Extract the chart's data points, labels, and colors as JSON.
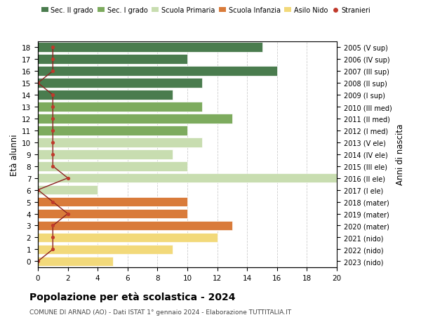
{
  "ages": [
    18,
    17,
    16,
    15,
    14,
    13,
    12,
    11,
    10,
    9,
    8,
    7,
    6,
    5,
    4,
    3,
    2,
    1,
    0
  ],
  "years": [
    "2005 (V sup)",
    "2006 (IV sup)",
    "2007 (III sup)",
    "2008 (II sup)",
    "2009 (I sup)",
    "2010 (III med)",
    "2011 (II med)",
    "2012 (I med)",
    "2013 (V ele)",
    "2014 (IV ele)",
    "2015 (III ele)",
    "2016 (II ele)",
    "2017 (I ele)",
    "2018 (mater)",
    "2019 (mater)",
    "2020 (mater)",
    "2021 (nido)",
    "2022 (nido)",
    "2023 (nido)"
  ],
  "values": [
    15,
    10,
    16,
    11,
    9,
    11,
    13,
    10,
    11,
    9,
    10,
    20,
    4,
    10,
    10,
    13,
    12,
    9,
    5
  ],
  "stranieri": [
    1,
    1,
    1,
    0,
    1,
    1,
    1,
    1,
    1,
    1,
    1,
    2,
    0,
    1,
    2,
    1,
    1,
    1,
    0
  ],
  "bar_colors": [
    "#4a7c4e",
    "#4a7c4e",
    "#4a7c4e",
    "#4a7c4e",
    "#4a7c4e",
    "#7dab5e",
    "#7dab5e",
    "#7dab5e",
    "#c8ddb0",
    "#c8ddb0",
    "#c8ddb0",
    "#c8ddb0",
    "#c8ddb0",
    "#d97b3a",
    "#d97b3a",
    "#d97b3a",
    "#f2d97a",
    "#f2d97a",
    "#f2d97a"
  ],
  "legend_labels": [
    "Sec. II grado",
    "Sec. I grado",
    "Scuola Primaria",
    "Scuola Infanzia",
    "Asilo Nido",
    "Stranieri"
  ],
  "legend_colors": [
    "#4a7c4e",
    "#7dab5e",
    "#c8ddb0",
    "#d97b3a",
    "#f2d97a",
    "#c0392b"
  ],
  "stranieri_color": "#c0392b",
  "stranieri_line_color": "#8b2020",
  "ylabel": "Età alunni",
  "ylabel_right": "Anni di nascita",
  "title": "Popolazione per età scolastica - 2024",
  "subtitle": "COMUNE DI ARNAD (AO) - Dati ISTAT 1° gennaio 2024 - Elaborazione TUTTITALIA.IT",
  "xlim": [
    0,
    20
  ],
  "background_color": "#ffffff",
  "grid_color": "#cccccc"
}
